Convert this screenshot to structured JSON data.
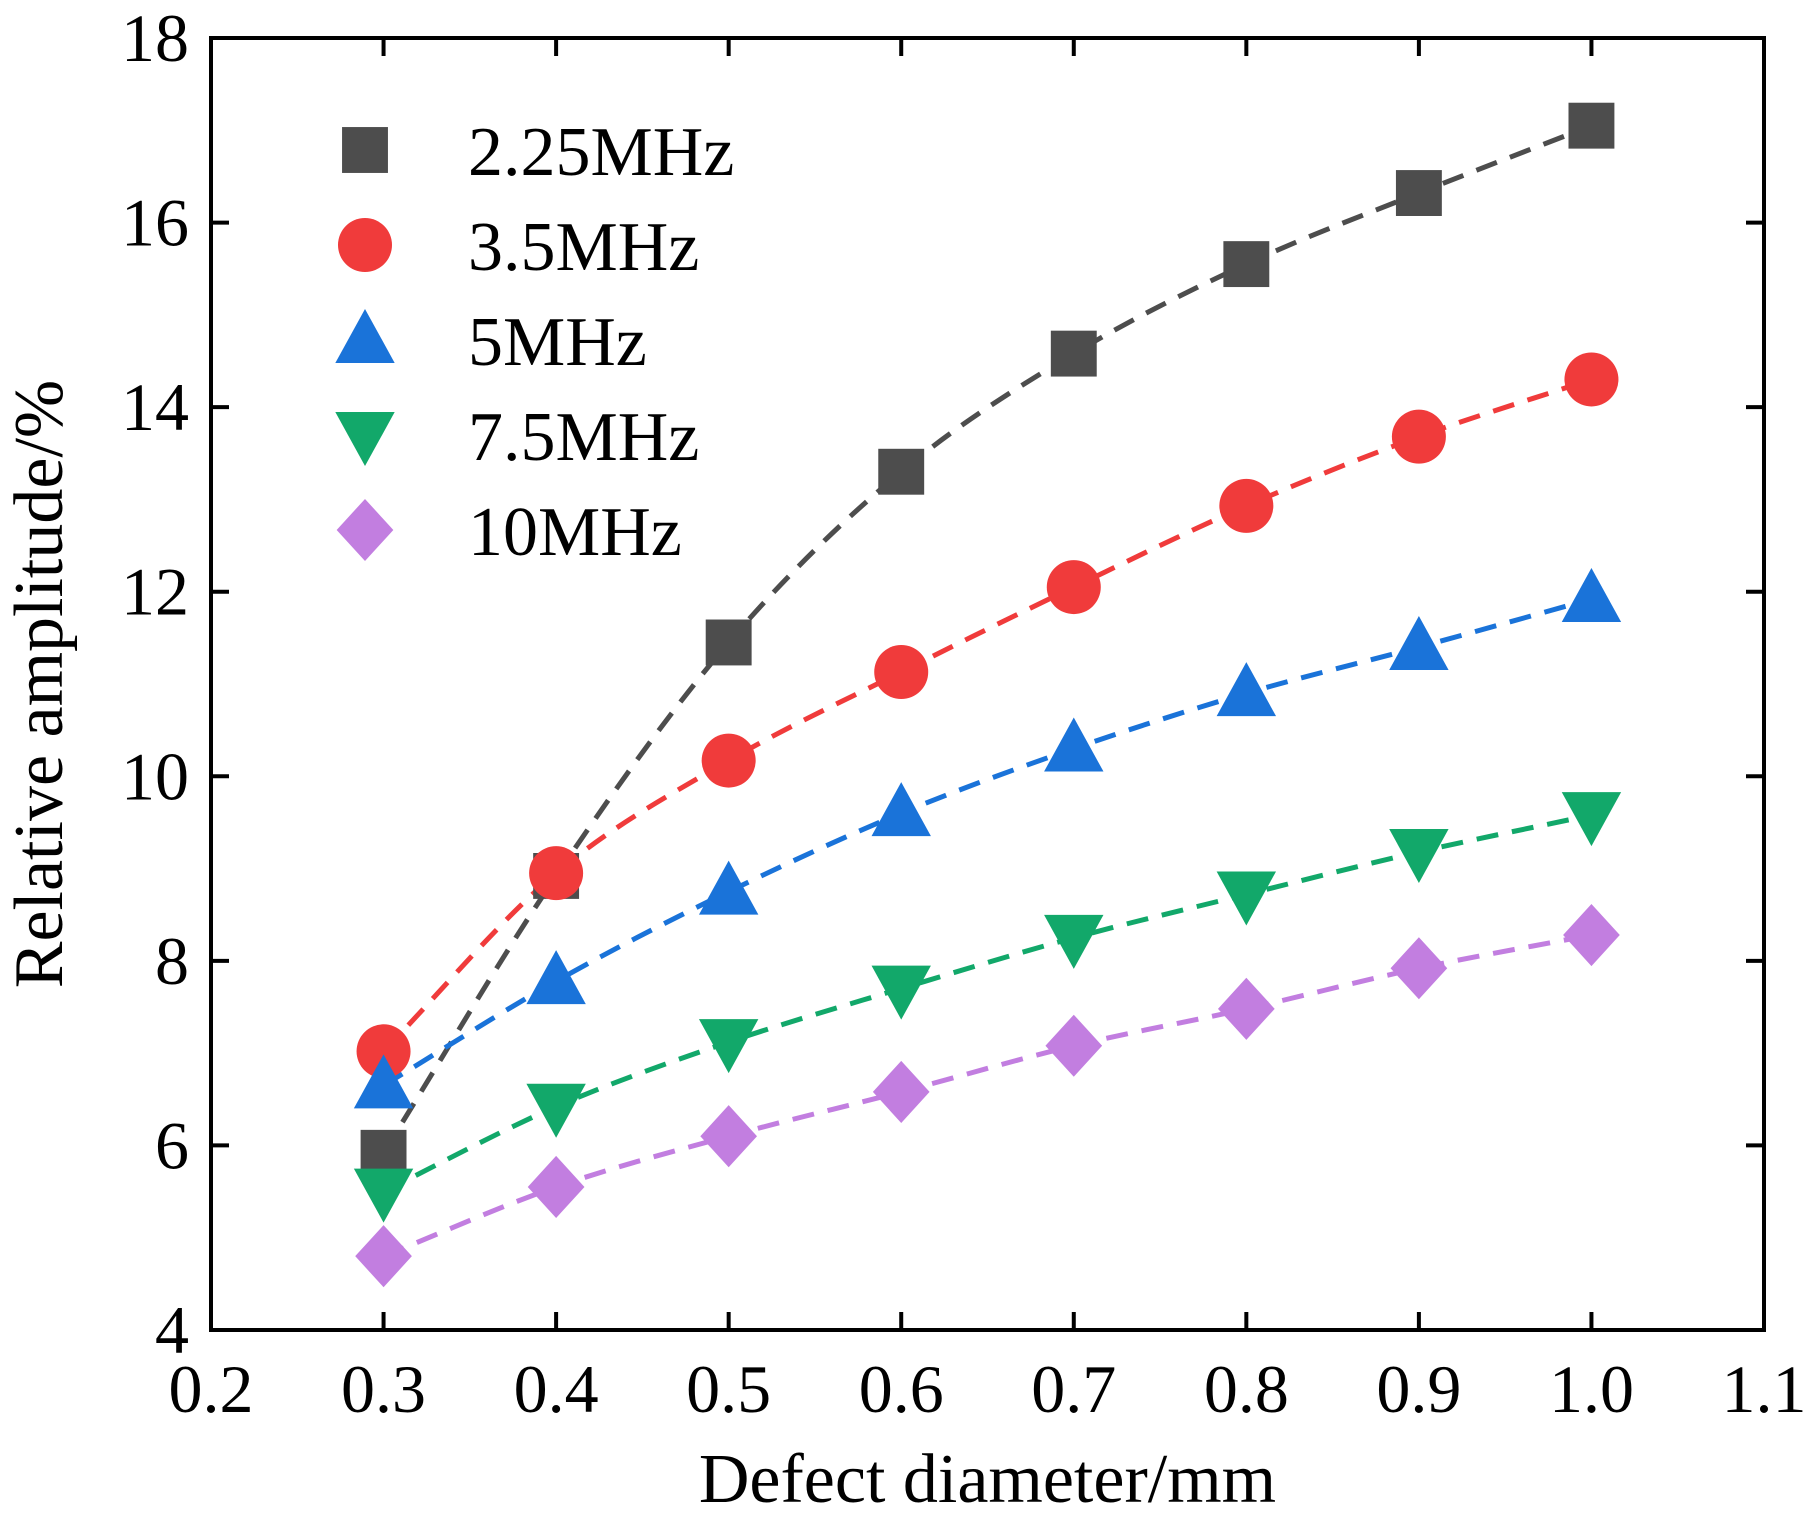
{
  "chart_data": {
    "type": "scatter",
    "title": "",
    "xlabel": "Defect diameter/mm",
    "ylabel": "Relative amplitude/%",
    "xlim": [
      0.2,
      1.1
    ],
    "ylim": [
      4,
      18
    ],
    "xticks": [
      "0.2",
      "0.3",
      "0.4",
      "0.5",
      "0.6",
      "0.7",
      "0.8",
      "0.9",
      "1.0",
      "1.1"
    ],
    "yticks": [
      "4",
      "6",
      "8",
      "10",
      "12",
      "14",
      "16",
      "18"
    ],
    "grid": false,
    "legend_position": "top-left",
    "fit_lines": "dashed",
    "x": [
      0.3,
      0.4,
      0.5,
      0.6,
      0.7,
      0.8,
      0.9,
      1.0
    ],
    "series": [
      {
        "name": "2.25MHz",
        "marker": "square",
        "color": "#4d4d4d",
        "values": [
          5.92,
          8.92,
          11.45,
          13.3,
          14.58,
          15.55,
          16.32,
          17.05
        ]
      },
      {
        "name": "3.5MHz",
        "marker": "circle",
        "color": "#f03b3b",
        "values": [
          7.02,
          8.95,
          10.17,
          11.13,
          12.05,
          12.93,
          13.68,
          14.3
        ]
      },
      {
        "name": "5MHz",
        "marker": "triangle-up",
        "color": "#1a73d9",
        "values": [
          6.65,
          7.78,
          8.75,
          9.6,
          10.3,
          10.9,
          11.4,
          11.92
        ]
      },
      {
        "name": "7.5MHz",
        "marker": "triangle-down",
        "color": "#12a86a",
        "values": [
          5.5,
          6.42,
          7.12,
          7.7,
          8.25,
          8.72,
          9.18,
          9.58
        ]
      },
      {
        "name": "10MHz",
        "marker": "diamond",
        "color": "#c27ee0",
        "values": [
          4.8,
          5.55,
          6.1,
          6.58,
          7.08,
          7.48,
          7.92,
          8.28
        ]
      }
    ]
  }
}
